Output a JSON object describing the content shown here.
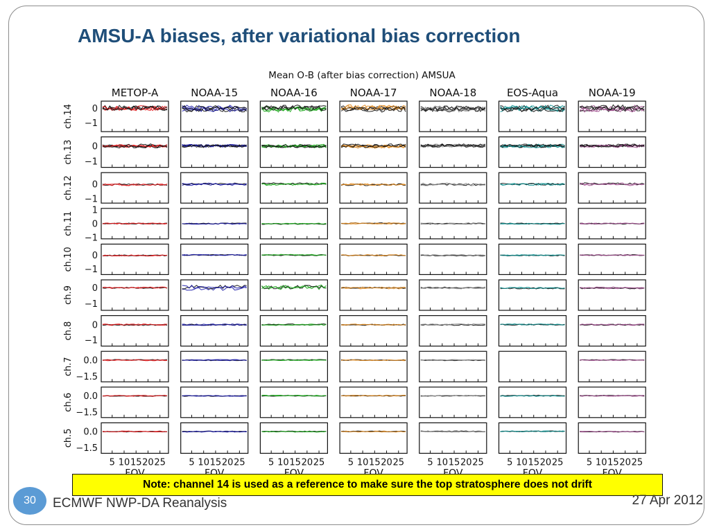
{
  "slide": {
    "title": "AMSU-A biases, after variational bias correction",
    "note": "Note: channel 14 is used as a reference to make sure the top stratosphere does not drift",
    "page_number": "30",
    "footer_left": "ECMWF NWP-DA Reanalysis",
    "footer_right": "27 Apr 2012"
  },
  "chart_data": {
    "type": "line",
    "title": "Mean O-B (after bias correction) AMSUA",
    "xlabel": "FOV",
    "x_ticks": [
      5,
      10,
      15,
      20,
      25
    ],
    "xlim": [
      1,
      28
    ],
    "satellites": [
      {
        "name": "METOP-A",
        "color": "#e41a1c",
        "present": [
          14,
          13,
          12,
          11,
          10,
          9,
          8,
          7,
          6,
          5
        ]
      },
      {
        "name": "NOAA-15",
        "color": "#1a1aa8",
        "present": [
          14,
          13,
          12,
          11,
          10,
          9,
          8,
          7,
          6,
          5
        ]
      },
      {
        "name": "NOAA-16",
        "color": "#1aa81a",
        "present": [
          14,
          13,
          12,
          11,
          10,
          9,
          8,
          7,
          6,
          5
        ]
      },
      {
        "name": "NOAA-17",
        "color": "#e08a1e",
        "present": [
          14,
          13,
          12,
          11,
          10,
          9,
          8,
          7,
          6,
          5
        ]
      },
      {
        "name": "NOAA-18",
        "color": "#8c8c8c",
        "present": [
          14,
          13,
          12,
          11,
          10,
          9,
          8,
          7,
          6,
          5
        ]
      },
      {
        "name": "EOS-Aqua",
        "color": "#0e8f8f",
        "present": [
          14,
          13,
          12,
          11,
          10,
          9,
          8,
          6,
          5
        ]
      },
      {
        "name": "NOAA-19",
        "color": "#a04f8e",
        "present": [
          14,
          13,
          12,
          11,
          10,
          9,
          8,
          7,
          6,
          5
        ]
      }
    ],
    "channels": [
      {
        "label": "ch.14",
        "ylim": [
          -1.6,
          0.5
        ],
        "yticks": [
          0,
          -1
        ],
        "tick_labels": [
          "0",
          "−1"
        ]
      },
      {
        "label": "ch.13",
        "ylim": [
          -1.4,
          0.6
        ],
        "yticks": [
          0,
          -1
        ],
        "tick_labels": [
          "0",
          "−1"
        ]
      },
      {
        "label": "ch.12",
        "ylim": [
          -1.3,
          0.8
        ],
        "yticks": [
          0,
          -1
        ],
        "tick_labels": [
          "0",
          "−1"
        ]
      },
      {
        "label": "ch.11",
        "ylim": [
          -1.1,
          1.1
        ],
        "yticks": [
          1,
          0,
          -1
        ],
        "tick_labels": [
          "1",
          "0",
          "−1"
        ]
      },
      {
        "label": "ch.10",
        "ylim": [
          -1.4,
          0.8
        ],
        "yticks": [
          0,
          -1
        ],
        "tick_labels": [
          "0",
          "−1"
        ]
      },
      {
        "label": "ch.9",
        "ylim": [
          -1.4,
          0.5
        ],
        "yticks": [
          0,
          -1
        ],
        "tick_labels": [
          "0",
          "−1"
        ]
      },
      {
        "label": "ch.8",
        "ylim": [
          -1.4,
          0.6
        ],
        "yticks": [
          0,
          -1
        ],
        "tick_labels": [
          "0",
          "−1"
        ]
      },
      {
        "label": "ch.7",
        "ylim": [
          -2.0,
          0.8
        ],
        "yticks": [
          0,
          -1.5
        ],
        "tick_labels": [
          "0.0",
          "−1.5"
        ]
      },
      {
        "label": "ch.6",
        "ylim": [
          -2.0,
          0.8
        ],
        "yticks": [
          0,
          -1.5
        ],
        "tick_labels": [
          "0.0",
          "−1.5"
        ]
      },
      {
        "label": "ch.5",
        "ylim": [
          -2.0,
          0.8
        ],
        "yticks": [
          0,
          -1.5
        ],
        "tick_labels": [
          "0.0",
          "−1.5"
        ]
      }
    ],
    "grid": false,
    "legend": "none"
  }
}
